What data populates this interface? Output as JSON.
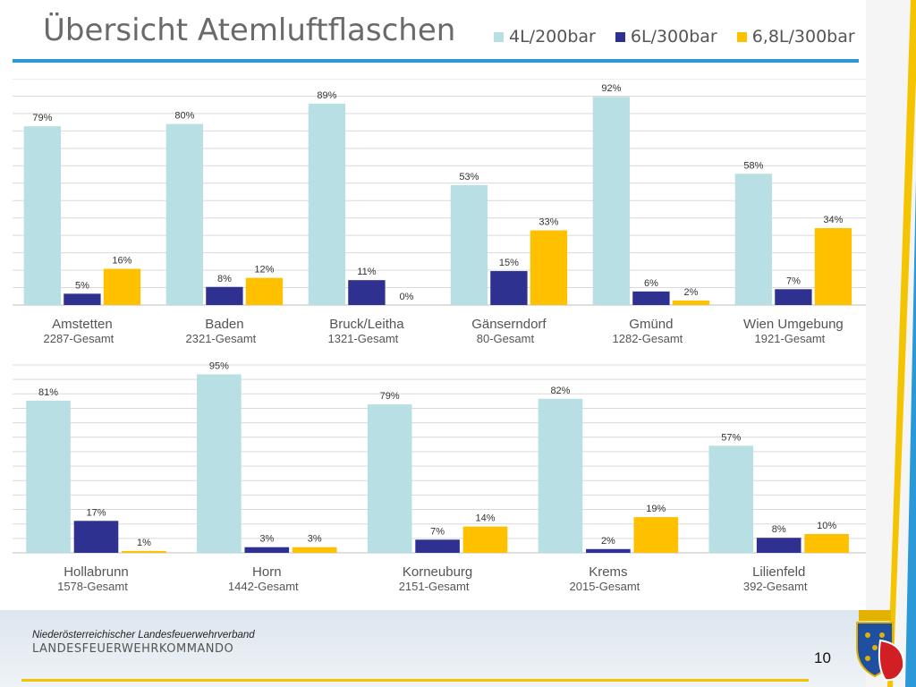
{
  "title": "Übersicht Atemluftflaschen",
  "legend": [
    {
      "label": "4L/200bar",
      "color": "#b8dfe3"
    },
    {
      "label": "6L/300bar",
      "color": "#2e3190"
    },
    {
      "label": "6,8L/300bar",
      "color": "#ffc000"
    }
  ],
  "footer": {
    "org": "Niederösterreichischer Landesfeuerwehrverband",
    "sub": "Landesfeuerwehrkommando",
    "page": "10"
  },
  "chart_data": [
    {
      "type": "bar",
      "categories": [
        "Amstetten",
        "Baden",
        "Bruck/Leitha",
        "Gänserndorf",
        "Gmünd",
        "Wien Umgebung"
      ],
      "totals": [
        "2287-Gesamt",
        "2321-Gesamt",
        "1321-Gesamt",
        "80-Gesamt",
        "1282-Gesamt",
        "1921-Gesamt"
      ],
      "series": [
        {
          "name": "4L/200bar",
          "values": [
            79,
            80,
            89,
            53,
            92,
            58
          ]
        },
        {
          "name": "6L/300bar",
          "values": [
            5,
            8,
            11,
            15,
            6,
            7
          ]
        },
        {
          "name": "6,8L/300bar",
          "values": [
            16,
            12,
            0,
            33,
            2,
            34
          ]
        }
      ],
      "value_suffix": "%",
      "ylim": [
        0,
        100
      ],
      "grid": true
    },
    {
      "type": "bar",
      "categories": [
        "Hollabrunn",
        "Horn",
        "Korneuburg",
        "Krems",
        "Lilienfeld"
      ],
      "totals": [
        "1578-Gesamt",
        "1442-Gesamt",
        "2151-Gesamt",
        "2015-Gesamt",
        "392-Gesamt"
      ],
      "series": [
        {
          "name": "4L/200bar",
          "values": [
            81,
            95,
            79,
            82,
            57
          ]
        },
        {
          "name": "6L/300bar",
          "values": [
            17,
            3,
            7,
            2,
            8
          ]
        },
        {
          "name": "6,8L/300bar",
          "values": [
            1,
            3,
            14,
            19,
            10
          ]
        }
      ],
      "value_suffix": "%",
      "ylim": [
        0,
        100
      ],
      "grid": true
    }
  ]
}
